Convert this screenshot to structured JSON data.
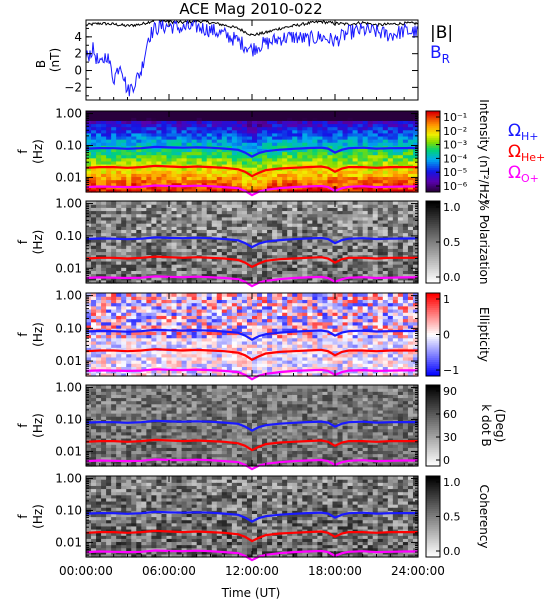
{
  "title": "ACE Mag 2010-022",
  "colors": {
    "total_field": "#000000",
    "radial_field": "#1a1aff",
    "hplus": "#1a1aff",
    "heplus": "#ff0000",
    "oplus": "#ff00ff",
    "background": "#ffffff"
  },
  "legend": {
    "b_total": "|B|",
    "b_radial_main": "B",
    "b_radial_sub": "R",
    "omega_h_main": "Ω",
    "omega_h_sub": "H+",
    "omega_he_main": "Ω",
    "omega_he_sub": "He+",
    "omega_o_main": "Ω",
    "omega_o_sub": "O+"
  },
  "chart_data": [
    {
      "type": "line",
      "panel": "magnetic-field",
      "ylabel": "B",
      "yunit": "(nT)",
      "ylim": [
        -3.5,
        6.0
      ],
      "yticks": [
        -2,
        0,
        2,
        4
      ],
      "xlim": [
        0,
        24
      ],
      "series": [
        {
          "name": "|B|",
          "color": "#000000",
          "x": [
            0,
            1,
            2,
            3,
            4,
            5,
            6,
            7,
            8,
            9,
            10,
            11,
            12,
            13,
            14,
            15,
            16,
            17,
            18,
            19,
            20,
            21,
            22,
            23,
            24
          ],
          "y": [
            5.4,
            5.6,
            5.5,
            5.3,
            5.5,
            6.0,
            5.8,
            5.7,
            5.9,
            5.7,
            5.4,
            5.0,
            4.2,
            4.5,
            5.0,
            5.3,
            5.6,
            5.8,
            5.6,
            5.5,
            5.7,
            5.4,
            5.5,
            5.6,
            5.6
          ]
        },
        {
          "name": "BR",
          "color": "#1a1aff",
          "x": [
            0,
            0.5,
            1,
            1.5,
            2,
            2.5,
            3,
            3.5,
            4,
            4.5,
            5,
            5.5,
            6,
            7,
            8,
            9,
            10,
            11,
            11.5,
            12,
            12.5,
            13,
            14,
            15,
            16,
            17,
            18,
            19,
            20,
            21,
            22,
            23,
            24
          ],
          "y": [
            1.5,
            2.5,
            0.5,
            2.0,
            -1.0,
            1.0,
            -2.5,
            -1.5,
            0.0,
            4.0,
            5.0,
            5.2,
            5.3,
            5.0,
            5.2,
            4.8,
            4.3,
            3.5,
            3.0,
            2.5,
            3.0,
            3.2,
            3.8,
            4.0,
            3.7,
            4.0,
            3.5,
            4.5,
            4.8,
            4.6,
            4.2,
            4.7,
            4.5
          ]
        }
      ]
    },
    {
      "type": "heatmap",
      "panel": "intensity",
      "ylabel": "f",
      "yunit": "(Hz)",
      "colorbar_label": "Intensity (nT²/Hz)",
      "colorbar_ticks": [
        "10⁻¹",
        "10⁻²",
        "10⁻³",
        "10⁻⁴",
        "10⁻⁵",
        "10⁻⁶"
      ],
      "colorbar_scale": "rainbow"
    },
    {
      "type": "heatmap",
      "panel": "polarization",
      "ylabel": "f",
      "yunit": "(Hz)",
      "colorbar_label": "% Polarization",
      "colorbar_ticks": [
        "1.0",
        "0.5",
        "0.0"
      ],
      "colorbar_scale": "gray"
    },
    {
      "type": "heatmap",
      "panel": "ellipticity",
      "ylabel": "f",
      "yunit": "(Hz)",
      "colorbar_label": "Ellipticity",
      "colorbar_ticks": [
        "1",
        "0",
        "−1"
      ],
      "colorbar_scale": "blue-white-red"
    },
    {
      "type": "heatmap",
      "panel": "k-dot-b",
      "ylabel": "f",
      "yunit": "(Hz)",
      "colorbar_label": "k dot B",
      "colorbar_unit": "(Deg)",
      "colorbar_ticks": [
        "90",
        "60",
        "30",
        "0"
      ],
      "colorbar_scale": "gray"
    },
    {
      "type": "heatmap",
      "panel": "coherency",
      "ylabel": "f",
      "yunit": "(Hz)",
      "colorbar_label": "Coherency",
      "colorbar_ticks": [
        "1.0",
        "0.5",
        "0.0"
      ],
      "colorbar_scale": "gray"
    }
  ],
  "freq_axis": {
    "scale": "log",
    "ylim": [
      0.0035,
      1.2
    ],
    "tick_values": [
      1.0,
      0.1,
      0.01
    ],
    "tick_labels": [
      "1.00",
      "0.10",
      "0.01"
    ]
  },
  "gyro_lines": {
    "x": [
      0,
      1,
      2,
      3,
      4,
      5,
      6,
      7,
      8,
      9,
      10,
      11,
      11.5,
      12,
      12.5,
      13,
      14,
      15,
      16,
      17,
      17.5,
      18,
      18.5,
      19,
      20,
      21,
      22,
      23,
      24
    ],
    "hplus": [
      0.08,
      0.083,
      0.082,
      0.079,
      0.082,
      0.09,
      0.087,
      0.085,
      0.088,
      0.085,
      0.08,
      0.073,
      0.06,
      0.045,
      0.058,
      0.066,
      0.074,
      0.079,
      0.083,
      0.086,
      0.08,
      0.06,
      0.074,
      0.082,
      0.085,
      0.08,
      0.082,
      0.083,
      0.083
    ],
    "heplus": [
      0.02,
      0.021,
      0.021,
      0.02,
      0.021,
      0.023,
      0.022,
      0.021,
      0.022,
      0.021,
      0.02,
      0.018,
      0.015,
      0.011,
      0.014,
      0.017,
      0.019,
      0.02,
      0.021,
      0.022,
      0.02,
      0.015,
      0.019,
      0.021,
      0.021,
      0.02,
      0.021,
      0.021,
      0.021
    ],
    "oplus": [
      0.005,
      0.0052,
      0.0051,
      0.005,
      0.0051,
      0.0056,
      0.0054,
      0.0053,
      0.0055,
      0.0053,
      0.005,
      0.0046,
      0.0038,
      0.0028,
      0.0036,
      0.0041,
      0.0046,
      0.005,
      0.0052,
      0.0054,
      0.005,
      0.0038,
      0.0046,
      0.0051,
      0.0053,
      0.005,
      0.0051,
      0.0052,
      0.0052
    ]
  },
  "time_axis": {
    "xlabel": "Time (UT)",
    "xlim": [
      0,
      24
    ],
    "tick_values": [
      0,
      6,
      12,
      18,
      24
    ],
    "tick_labels": [
      "00:00:00",
      "06:00:00",
      "12:00:00",
      "18:00:00",
      "24:00:00"
    ]
  }
}
